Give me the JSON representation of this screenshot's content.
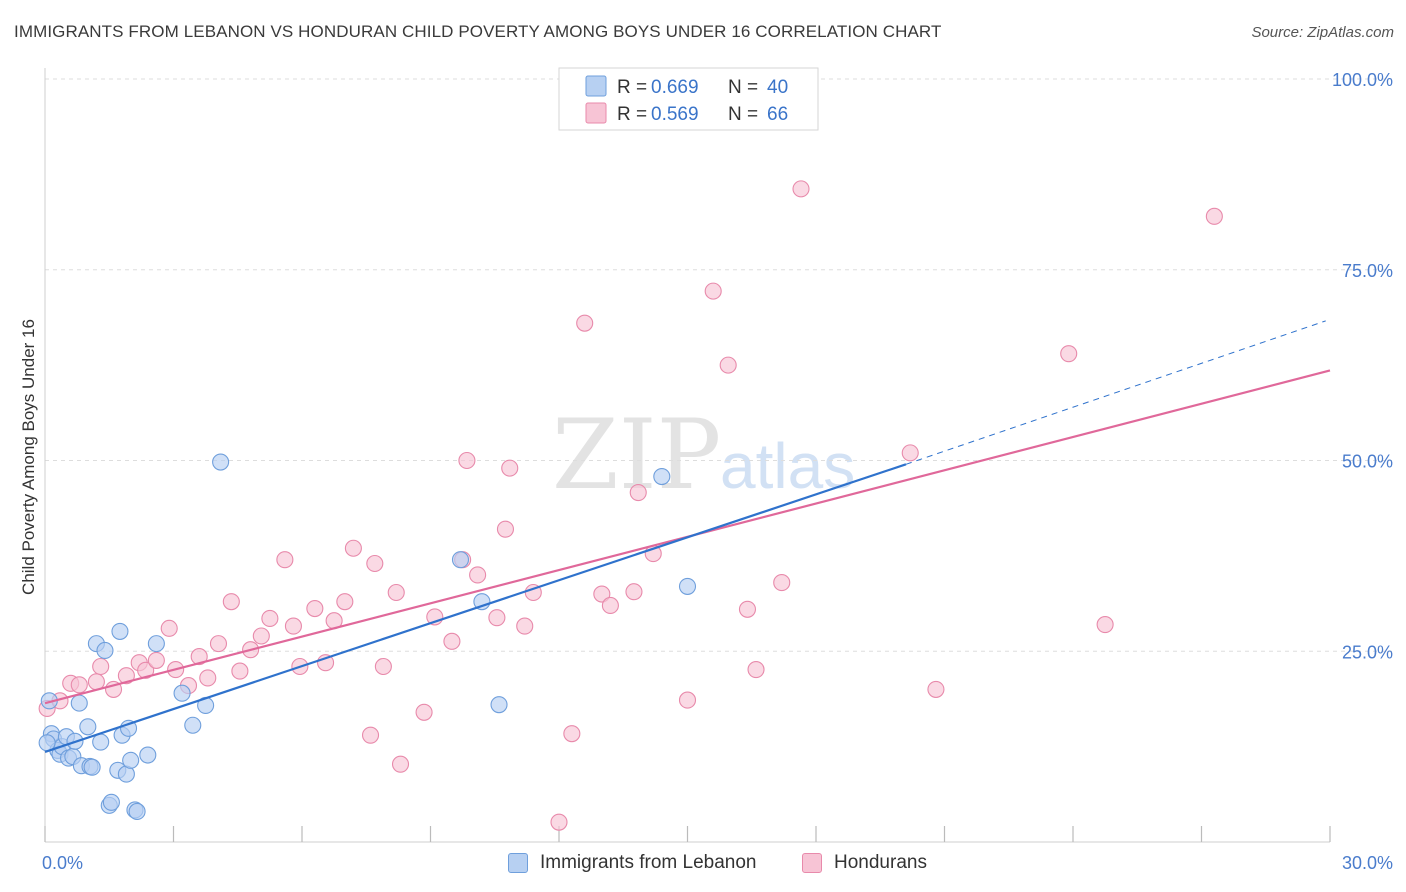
{
  "header": {
    "title": "IMMIGRANTS FROM LEBANON VS HONDURAN CHILD POVERTY AMONG BOYS UNDER 16 CORRELATION CHART",
    "source": "Source: ZipAtlas.com"
  },
  "watermark": {
    "zip": "ZIP",
    "atlas": "atlas"
  },
  "legend_top": {
    "rows": [
      {
        "r_label": "R =",
        "r_value": "0.669",
        "n_label": "N =",
        "n_value": "40"
      },
      {
        "r_label": "R =",
        "r_value": "0.569",
        "n_label": "N =",
        "n_value": "66"
      }
    ]
  },
  "legend_bottom": {
    "items": [
      {
        "label": "Immigrants from Lebanon"
      },
      {
        "label": "Hondurans"
      }
    ]
  },
  "colors": {
    "blue_fill": "#b7d0f2",
    "blue_stroke": "#6f9fdc",
    "blue_line": "#2f72cc",
    "pink_fill": "#f7c4d5",
    "pink_stroke": "#e88aab",
    "pink_line": "#e0689a",
    "tick_text": "#4a7ccc",
    "grid": "#dddddd"
  },
  "chart_data": {
    "type": "scatter",
    "title": "IMMIGRANTS FROM LEBANON VS HONDURAN CHILD POVERTY AMONG BOYS UNDER 16 CORRELATION CHART",
    "xlabel": "",
    "ylabel": "Child Poverty Among Boys Under 16",
    "xlim": [
      0,
      30
    ],
    "ylim": [
      0,
      100
    ],
    "x_tick_labels": [
      {
        "value": 0,
        "label": "0.0%"
      },
      {
        "value": 30,
        "label": "30.0%"
      }
    ],
    "y_tick_labels": [
      {
        "value": 25,
        "label": "25.0%"
      },
      {
        "value": 50,
        "label": "50.0%"
      },
      {
        "value": 75,
        "label": "75.0%"
      },
      {
        "value": 100,
        "label": "100.0%"
      }
    ],
    "series": [
      {
        "name": "Immigrants from Lebanon",
        "R": 0.669,
        "N": 40,
        "trend": {
          "x0": 0,
          "y0": 11.8,
          "x1": 20.1,
          "y1": 49.5,
          "dashed_to_x": 29.9,
          "dashed_to_y": 68.3
        },
        "points": [
          {
            "x": 0.1,
            "y": 18.5
          },
          {
            "x": 0.15,
            "y": 14.2
          },
          {
            "x": 0.2,
            "y": 13.5
          },
          {
            "x": 0.3,
            "y": 12.0
          },
          {
            "x": 0.35,
            "y": 11.5
          },
          {
            "x": 0.4,
            "y": 12.5
          },
          {
            "x": 0.5,
            "y": 13.8
          },
          {
            "x": 0.55,
            "y": 11.0
          },
          {
            "x": 0.65,
            "y": 11.2
          },
          {
            "x": 0.7,
            "y": 13.2
          },
          {
            "x": 0.8,
            "y": 18.2
          },
          {
            "x": 0.85,
            "y": 10.0
          },
          {
            "x": 1.0,
            "y": 15.1
          },
          {
            "x": 1.05,
            "y": 9.9
          },
          {
            "x": 1.1,
            "y": 9.8
          },
          {
            "x": 1.2,
            "y": 26.0
          },
          {
            "x": 1.3,
            "y": 13.1
          },
          {
            "x": 1.4,
            "y": 25.1
          },
          {
            "x": 1.5,
            "y": 4.8
          },
          {
            "x": 1.55,
            "y": 5.2
          },
          {
            "x": 1.7,
            "y": 9.4
          },
          {
            "x": 1.75,
            "y": 27.6
          },
          {
            "x": 1.8,
            "y": 14.0
          },
          {
            "x": 1.9,
            "y": 8.9
          },
          {
            "x": 1.95,
            "y": 14.9
          },
          {
            "x": 2.0,
            "y": 10.7
          },
          {
            "x": 2.1,
            "y": 4.2
          },
          {
            "x": 2.15,
            "y": 4.0
          },
          {
            "x": 2.4,
            "y": 11.4
          },
          {
            "x": 2.6,
            "y": 26.0
          },
          {
            "x": 3.2,
            "y": 19.5
          },
          {
            "x": 3.45,
            "y": 15.3
          },
          {
            "x": 3.75,
            "y": 17.9
          },
          {
            "x": 4.1,
            "y": 49.8
          },
          {
            "x": 9.7,
            "y": 37.0
          },
          {
            "x": 10.2,
            "y": 31.5
          },
          {
            "x": 10.6,
            "y": 18.0
          },
          {
            "x": 14.4,
            "y": 47.9
          },
          {
            "x": 15.0,
            "y": 33.5
          },
          {
            "x": 0.05,
            "y": 13.0
          }
        ]
      },
      {
        "name": "Hondurans",
        "R": 0.569,
        "N": 66,
        "trend": {
          "x0": 0,
          "y0": 18.2,
          "x1": 30.0,
          "y1": 61.8
        },
        "points": [
          {
            "x": 0.05,
            "y": 17.5
          },
          {
            "x": 0.35,
            "y": 18.5
          },
          {
            "x": 0.6,
            "y": 20.8
          },
          {
            "x": 0.8,
            "y": 20.6
          },
          {
            "x": 1.2,
            "y": 21.0
          },
          {
            "x": 1.3,
            "y": 23.0
          },
          {
            "x": 1.6,
            "y": 20.0
          },
          {
            "x": 1.9,
            "y": 21.8
          },
          {
            "x": 2.2,
            "y": 23.5
          },
          {
            "x": 2.35,
            "y": 22.5
          },
          {
            "x": 2.6,
            "y": 23.8
          },
          {
            "x": 2.9,
            "y": 28.0
          },
          {
            "x": 3.05,
            "y": 22.6
          },
          {
            "x": 3.35,
            "y": 20.5
          },
          {
            "x": 3.6,
            "y": 24.3
          },
          {
            "x": 3.8,
            "y": 21.5
          },
          {
            "x": 4.05,
            "y": 26.0
          },
          {
            "x": 4.35,
            "y": 31.5
          },
          {
            "x": 4.55,
            "y": 22.4
          },
          {
            "x": 4.8,
            "y": 25.2
          },
          {
            "x": 5.05,
            "y": 27.0
          },
          {
            "x": 5.25,
            "y": 29.3
          },
          {
            "x": 5.6,
            "y": 37.0
          },
          {
            "x": 5.8,
            "y": 28.3
          },
          {
            "x": 5.95,
            "y": 23.0
          },
          {
            "x": 6.3,
            "y": 30.6
          },
          {
            "x": 6.55,
            "y": 23.5
          },
          {
            "x": 6.75,
            "y": 29.0
          },
          {
            "x": 7.0,
            "y": 31.5
          },
          {
            "x": 7.2,
            "y": 38.5
          },
          {
            "x": 7.6,
            "y": 14.0
          },
          {
            "x": 7.7,
            "y": 36.5
          },
          {
            "x": 7.9,
            "y": 23.0
          },
          {
            "x": 8.2,
            "y": 32.7
          },
          {
            "x": 8.3,
            "y": 10.2
          },
          {
            "x": 8.85,
            "y": 17.0
          },
          {
            "x": 9.1,
            "y": 29.5
          },
          {
            "x": 9.5,
            "y": 26.3
          },
          {
            "x": 9.75,
            "y": 37.0
          },
          {
            "x": 9.85,
            "y": 50.0
          },
          {
            "x": 10.1,
            "y": 35.0
          },
          {
            "x": 10.55,
            "y": 29.4
          },
          {
            "x": 10.75,
            "y": 41.0
          },
          {
            "x": 10.85,
            "y": 49.0
          },
          {
            "x": 11.2,
            "y": 28.3
          },
          {
            "x": 11.4,
            "y": 32.7
          },
          {
            "x": 12.0,
            "y": 2.6
          },
          {
            "x": 12.3,
            "y": 14.2
          },
          {
            "x": 12.6,
            "y": 68.0
          },
          {
            "x": 13.0,
            "y": 32.5
          },
          {
            "x": 13.2,
            "y": 31.0
          },
          {
            "x": 13.75,
            "y": 32.8
          },
          {
            "x": 13.85,
            "y": 45.8
          },
          {
            "x": 14.2,
            "y": 37.8
          },
          {
            "x": 15.0,
            "y": 18.6
          },
          {
            "x": 15.6,
            "y": 72.2
          },
          {
            "x": 15.95,
            "y": 62.5
          },
          {
            "x": 16.4,
            "y": 30.5
          },
          {
            "x": 16.6,
            "y": 22.6
          },
          {
            "x": 17.2,
            "y": 34.0
          },
          {
            "x": 17.65,
            "y": 85.6
          },
          {
            "x": 20.2,
            "y": 51.0
          },
          {
            "x": 20.8,
            "y": 20.0
          },
          {
            "x": 23.9,
            "y": 64.0
          },
          {
            "x": 24.75,
            "y": 28.5
          },
          {
            "x": 27.3,
            "y": 82.0
          }
        ]
      }
    ]
  }
}
